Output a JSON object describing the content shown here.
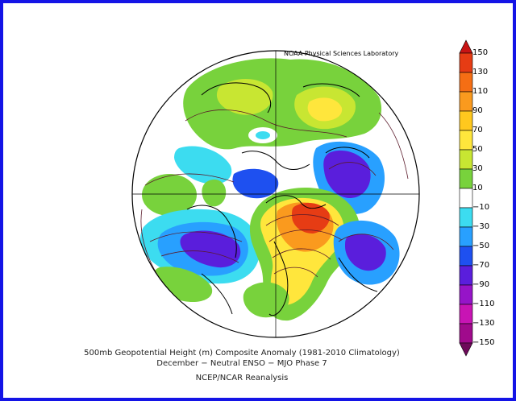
{
  "header": {
    "credit": "NOAA Physical Sciences Laboratory"
  },
  "caption": {
    "line1": "500mb Geopotential Height (m) Composite Anomaly (1981-2010 Climatology)",
    "line2": "December − Neutral ENSO − MJO Phase 7",
    "line3": "NCEP/NCAR Reanalysis"
  },
  "colorbar": {
    "labels": [
      "150",
      "130",
      "110",
      "90",
      "70",
      "50",
      "30",
      "10",
      "−10",
      "−30",
      "−50",
      "−70",
      "−90",
      "−110",
      "−130",
      "−150"
    ],
    "colors": [
      "#c81414",
      "#e63c14",
      "#f56e14",
      "#fa9a1e",
      "#ffc81e",
      "#ffe63c",
      "#c8e632",
      "#78d23c",
      "#ffffff",
      "#3cdcf0",
      "#28a0ff",
      "#1e50f0",
      "#5a1edc",
      "#9614c8",
      "#c814b4",
      "#a00a8c",
      "#6e0a5a"
    ]
  },
  "map": {
    "projection": "north polar stereographic",
    "colors": {
      "land_outline": "#000000",
      "contour": "#5a1a2a",
      "neg_strong": "#5a1edc",
      "neg_mid": "#1e50f0",
      "neg_light": "#28a0ff",
      "neg_weak": "#3cdcf0",
      "pos_weak": "#78d23c",
      "pos_mid": "#c8e632",
      "pos_strong": "#ffc81e",
      "pos_max": "#e63c14"
    }
  }
}
